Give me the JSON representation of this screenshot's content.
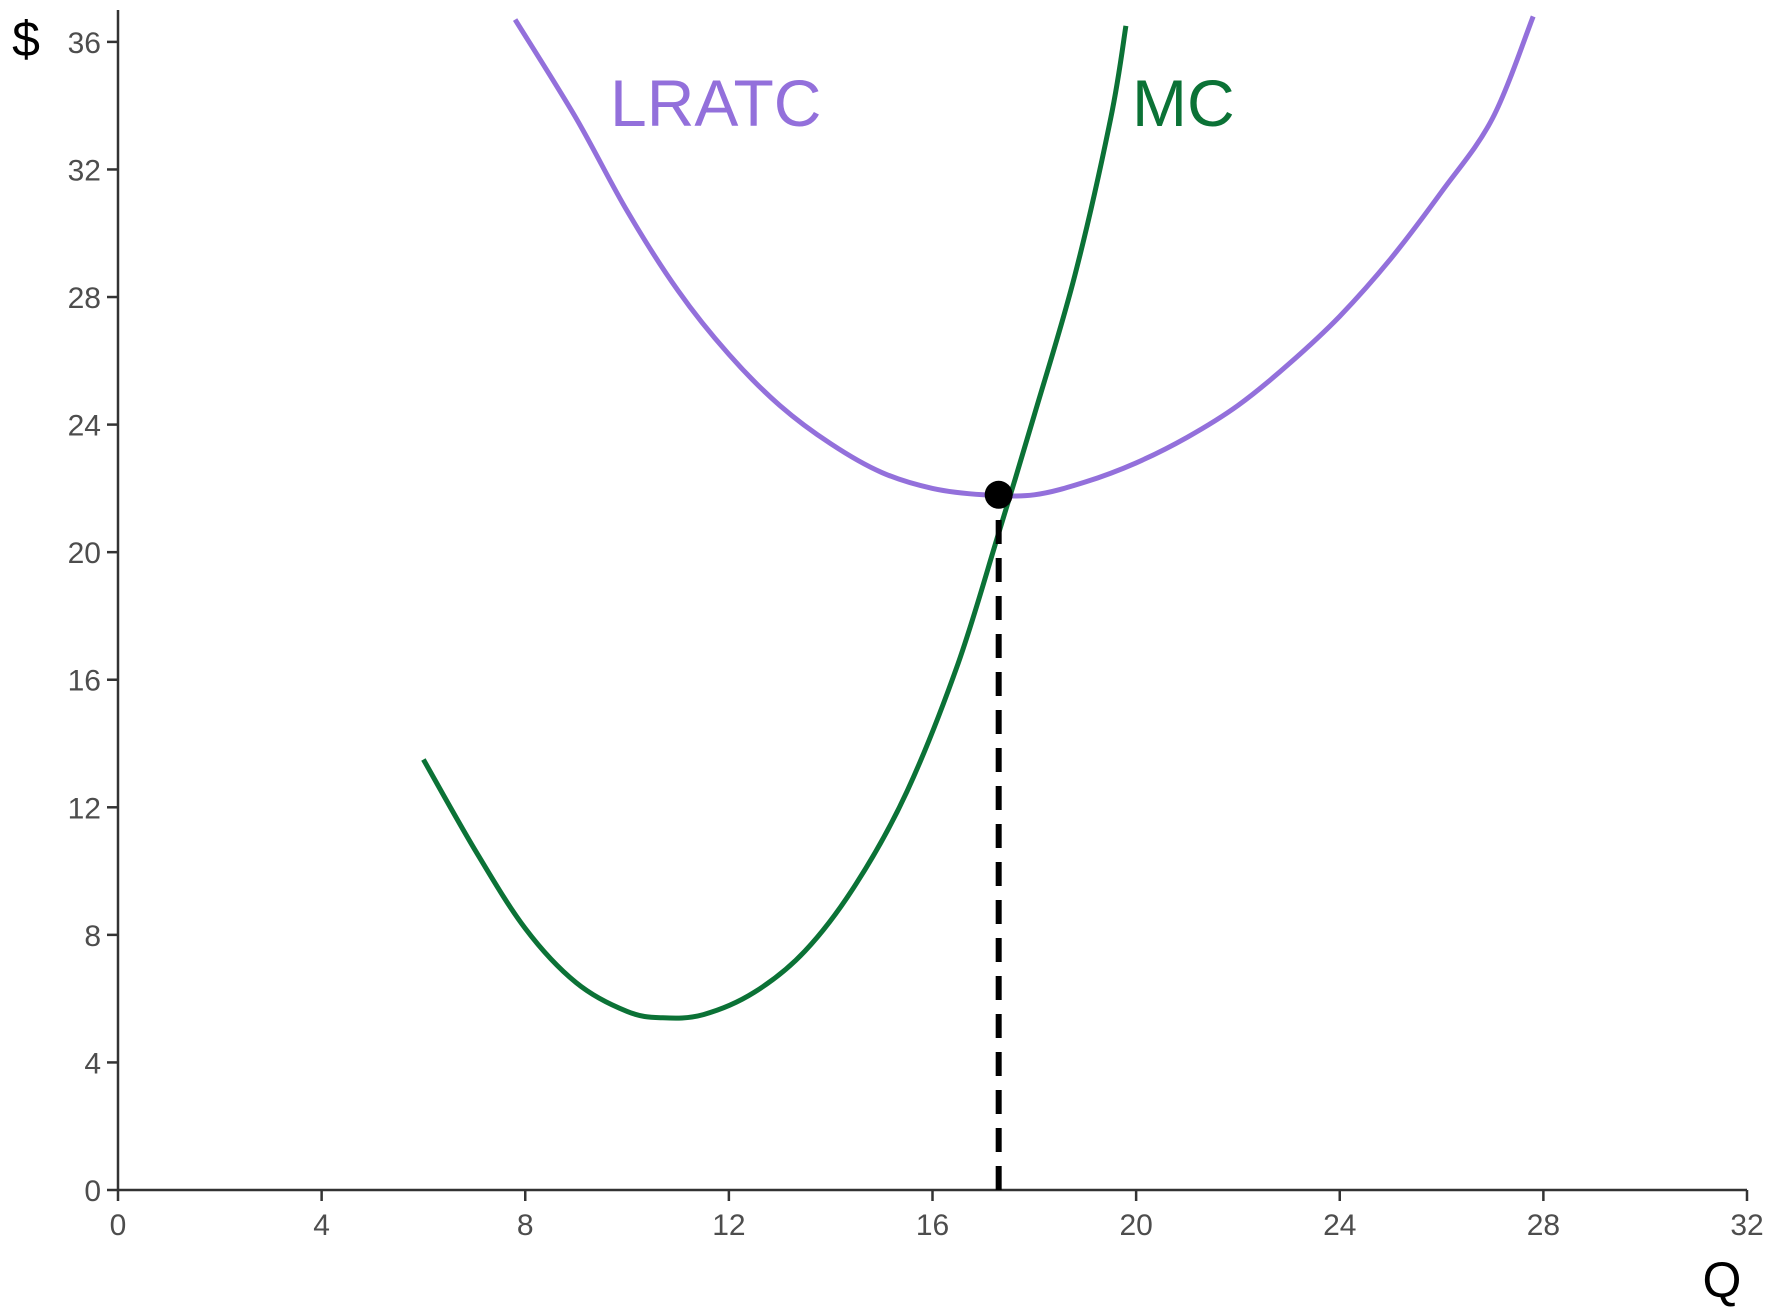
{
  "chart_data": {
    "type": "line",
    "title": "",
    "xlabel": "Q",
    "ylabel": "$",
    "xlim": [
      0,
      32
    ],
    "ylim": [
      0,
      37
    ],
    "x_ticks": [
      0,
      4,
      8,
      12,
      16,
      20,
      24,
      28,
      32
    ],
    "y_ticks": [
      0,
      4,
      8,
      12,
      16,
      20,
      24,
      28,
      32,
      36
    ],
    "grid": false,
    "legend": "none",
    "series": [
      {
        "name": "LRATC",
        "color": "#9370DB",
        "points": [
          [
            7.8,
            36.7
          ],
          [
            9.0,
            33.6
          ],
          [
            10.0,
            30.7
          ],
          [
            11.0,
            28.2
          ],
          [
            12.0,
            26.2
          ],
          [
            13.0,
            24.6
          ],
          [
            14.0,
            23.4
          ],
          [
            15.0,
            22.5
          ],
          [
            16.0,
            22.0
          ],
          [
            17.0,
            21.8
          ],
          [
            18.0,
            21.8
          ],
          [
            19.0,
            22.2
          ],
          [
            20.0,
            22.8
          ],
          [
            21.0,
            23.6
          ],
          [
            22.0,
            24.6
          ],
          [
            23.0,
            25.9
          ],
          [
            24.0,
            27.4
          ],
          [
            25.0,
            29.2
          ],
          [
            26.0,
            31.3
          ],
          [
            27.0,
            33.6
          ],
          [
            27.8,
            36.8
          ]
        ]
      },
      {
        "name": "MC",
        "color": "#0B7236",
        "points": [
          [
            6.0,
            13.5
          ],
          [
            7.0,
            10.7
          ],
          [
            8.0,
            8.2
          ],
          [
            9.0,
            6.5
          ],
          [
            10.0,
            5.6
          ],
          [
            10.7,
            5.4
          ],
          [
            11.5,
            5.5
          ],
          [
            12.5,
            6.2
          ],
          [
            13.5,
            7.5
          ],
          [
            14.5,
            9.6
          ],
          [
            15.5,
            12.5
          ],
          [
            16.5,
            16.5
          ],
          [
            17.3,
            20.6
          ],
          [
            18.0,
            24.3
          ],
          [
            18.8,
            28.7
          ],
          [
            19.5,
            33.6
          ],
          [
            19.8,
            36.5
          ]
        ]
      }
    ],
    "markers": [
      {
        "x": 17.3,
        "y": 21.8,
        "color": "#000000"
      }
    ],
    "reference_lines": [
      {
        "x": 17.3,
        "y_from": 0,
        "y_to": 21.8,
        "style": "dashed",
        "color": "#000000"
      }
    ]
  }
}
